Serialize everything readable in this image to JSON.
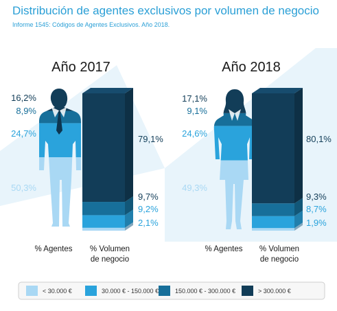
{
  "title": "Distribución de agentes exclusivos por volumen de negocio",
  "subtitle": "Informe 1545: Códigos de Agentes Exclusivos. Año 2018.",
  "colors": {
    "tier1": "#a9d8f4",
    "tier2": "#2aa3dc",
    "tier3": "#176f9a",
    "tier4": "#123d58",
    "accent": "#2a9fd6",
    "background_shape": "#e7f3fa"
  },
  "chart_data": {
    "type": "bar",
    "title": "Distribución de agentes exclusivos por volumen de negocio",
    "subtitle": "Informe 1545: Códigos de Agentes Exclusivos. Año 2018.",
    "categories": [
      "< 30.000 €",
      "30.000 € - 150.000 €",
      "150.000 € - 300.000 €",
      "> 300.000 €"
    ],
    "measures": [
      "% Agentes",
      "% Volumen de negocio"
    ],
    "stacked": true,
    "legend_position": "bottom",
    "panels": [
      {
        "year": "Año 2017",
        "agentes": {
          "label": "% Agentes",
          "values": [
            50.3,
            24.7,
            8.9,
            16.2
          ],
          "labels": [
            "50,3%",
            "24,7%",
            "8,9%",
            "16,2%"
          ]
        },
        "volumen": {
          "label_line1": "% Volumen",
          "label_line2": "de negocio",
          "values": [
            2.1,
            9.2,
            9.7,
            79.1
          ],
          "labels": [
            "2,1%",
            "9,2%",
            "9,7%",
            "79,1%"
          ]
        }
      },
      {
        "year": "Año 2018",
        "agentes": {
          "label": "% Agentes",
          "values": [
            49.3,
            24.6,
            9.1,
            17.1
          ],
          "labels": [
            "49,3%",
            "24,6%",
            "9,1%",
            "17,1%"
          ]
        },
        "volumen": {
          "label_line1": "% Volumen",
          "label_line2": "de negocio",
          "values": [
            1.9,
            8.7,
            9.3,
            80.1
          ],
          "labels": [
            "1,9%",
            "8,7%",
            "9,3%",
            "80,1%"
          ]
        }
      }
    ]
  }
}
